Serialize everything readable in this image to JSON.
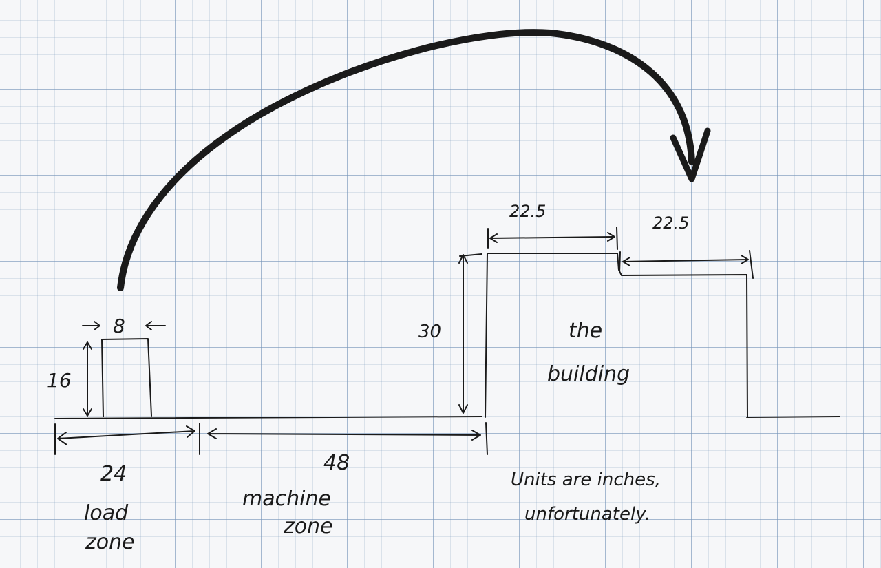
{
  "dimensions": {
    "load_box_width": "8",
    "load_box_height": "16",
    "load_zone_length": "24",
    "machine_zone_length": "48",
    "building_height": "30",
    "building_first_step": "22.5",
    "building_second_step": "22.5"
  },
  "labels": {
    "load_zone": [
      "load",
      "zone"
    ],
    "machine_zone": [
      "machine",
      "zone"
    ],
    "building": [
      "the",
      "building"
    ],
    "units_note": [
      "Units are inches,",
      "unfortunately."
    ]
  }
}
